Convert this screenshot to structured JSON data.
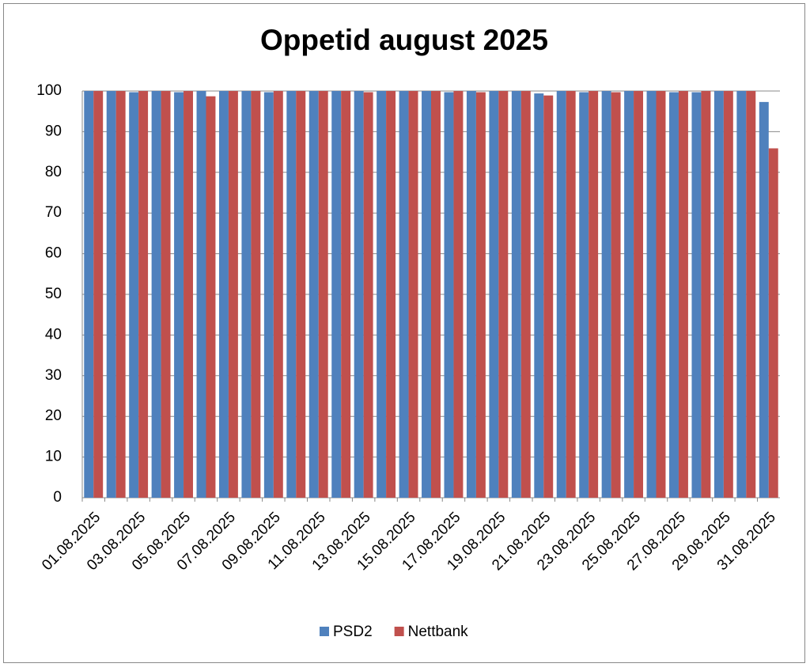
{
  "chart_data": {
    "type": "bar",
    "title": "Oppetid august 2025",
    "categories": [
      "01.08.2025",
      null,
      "03.08.2025",
      null,
      "05.08.2025",
      null,
      "07.08.2025",
      null,
      "09.08.2025",
      null,
      "11.08.2025",
      null,
      "13.08.2025",
      null,
      "15.08.2025",
      null,
      "17.08.2025",
      null,
      "19.08.2025",
      null,
      "21.08.2025",
      null,
      "23.08.2025",
      null,
      "25.08.2025",
      null,
      "27.08.2025",
      null,
      "29.08.2025",
      null,
      "31.08.2025"
    ],
    "series": [
      {
        "name": "PSD2",
        "color": "#4f81bd",
        "values": [
          100,
          100,
          99.7,
          100,
          99.7,
          100,
          100,
          100,
          99.7,
          100,
          100,
          100,
          100,
          100,
          100,
          100,
          99.7,
          100,
          100,
          100,
          99.4,
          100,
          99.7,
          100,
          100,
          100,
          99.7,
          99.7,
          100,
          100,
          97.3
        ]
      },
      {
        "name": "Nettbank",
        "color": "#c0504d",
        "values": [
          100,
          100,
          100,
          100,
          100,
          98.7,
          100,
          100,
          100,
          100,
          100,
          100,
          99.7,
          100,
          100,
          100,
          100,
          99.7,
          100,
          100,
          98.9,
          100,
          100,
          99.7,
          100,
          100,
          100,
          100,
          100,
          100,
          85.9
        ]
      }
    ],
    "ylim": [
      0,
      100
    ],
    "yticks": [
      0,
      10,
      20,
      30,
      40,
      50,
      60,
      70,
      80,
      90,
      100
    ],
    "grid": true,
    "legend": "bottom"
  }
}
